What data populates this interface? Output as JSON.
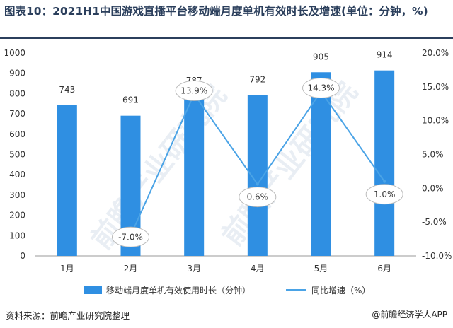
{
  "title": "图表10：2021H1中国游戏直播平台移动端月度单机有效时长及增速(单位：分钟，%)",
  "source": "资料来源：前瞻产业研究院整理",
  "credit": "@前瞻经济学人APP",
  "watermark": "前瞻产业研究院",
  "colors": {
    "bar": "#2f8fe2",
    "line": "#4aa3e6",
    "axis": "#999999",
    "text": "#333333"
  },
  "chart_data": {
    "type": "bar",
    "categories": [
      "1月",
      "2月",
      "3月",
      "4月",
      "5月",
      "6月"
    ],
    "series": [
      {
        "name": "移动端月度单机有效使用时长（分钟）",
        "type": "bar",
        "axis": "left",
        "values": [
          743,
          691,
          787,
          792,
          905,
          914
        ]
      },
      {
        "name": "同比增速（%）",
        "type": "line",
        "axis": "right",
        "values": [
          null,
          -7.0,
          13.9,
          0.6,
          14.3,
          1.0
        ]
      }
    ],
    "bar_labels": [
      "743",
      "691",
      "787",
      "792",
      "905",
      "914"
    ],
    "line_labels": [
      "",
      "-7.0%",
      "13.9%",
      "0.6%",
      "14.3%",
      "1.0%"
    ],
    "yleft": {
      "ylim": [
        0,
        1000
      ],
      "ticks": [
        "0",
        "100",
        "200",
        "300",
        "400",
        "500",
        "600",
        "700",
        "800",
        "900",
        "1000"
      ]
    },
    "yright": {
      "ylim": [
        -10,
        20
      ],
      "ticks": [
        "-10.0%",
        "-5.0%",
        "0.0%",
        "5.0%",
        "10.0%",
        "15.0%",
        "20.0%"
      ]
    },
    "legend_position": "bottom",
    "grid": false
  }
}
